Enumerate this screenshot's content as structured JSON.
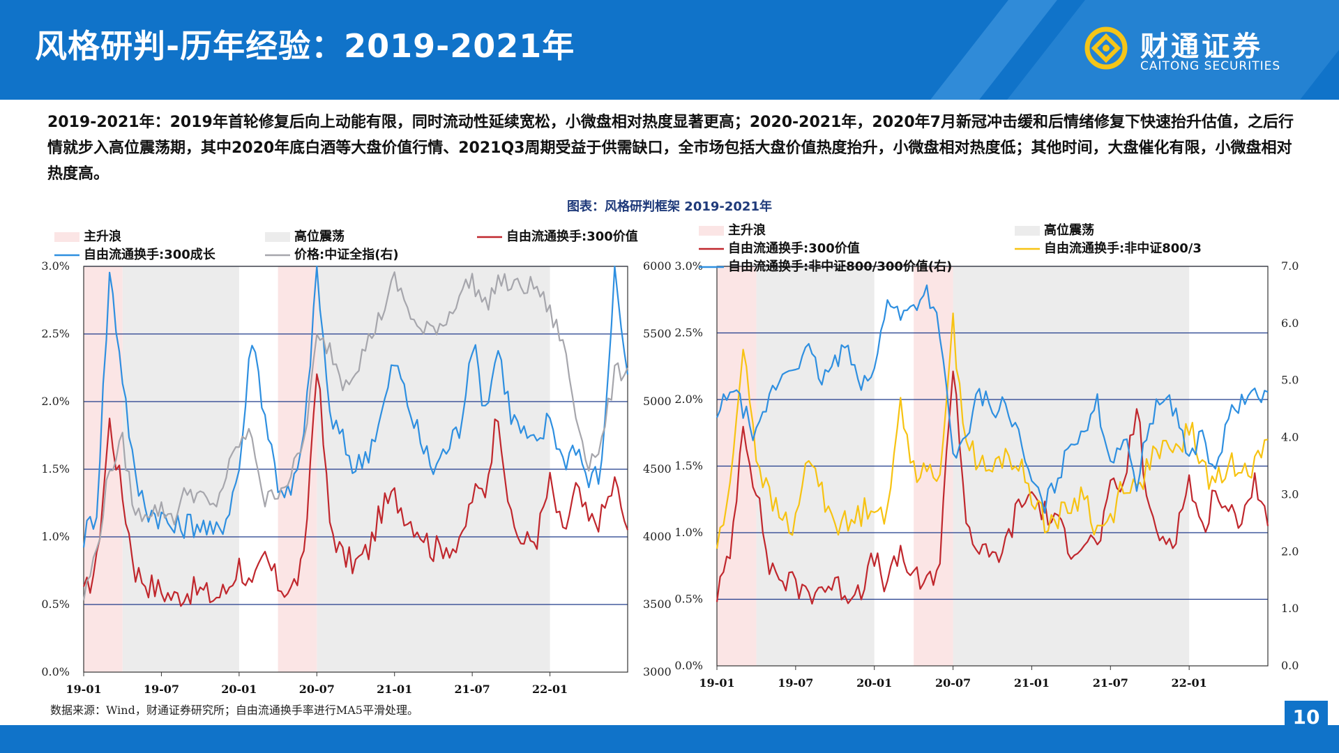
{
  "header": {
    "title": "风格研判-历年经验：2019-2021年",
    "brand_cn": "财通证券",
    "brand_en": "CAITONG SECURITIES"
  },
  "summary": "2019-2021年：2019年首轮修复后向上动能有限，同时流动性延续宽松，小微盘相对热度显著更高；2020-2021年，2020年7月新冠冲击缓和后情绪修复下快速抬升估值，之后行情就步入高位震荡期，其中2020年底白酒等大盘价值行情、2021Q3周期受益于供需缺口，全市场包括大盘价值热度抬升，小微盘相对热度低；其他时间，大盘催化有限，小微盘相对热度高。",
  "figure_title": "图表：风格研判框架 2019-2021年",
  "source": "数据来源：Wind，财通证券研究所；自由流通换手率进行MA5平滑处理。",
  "page_number": "10",
  "colors": {
    "brand_blue": "#1073c9",
    "surge_fill": "#fbe5e5",
    "osc_fill": "#ececec",
    "red": "#c0272d",
    "blue": "#2e8fe0",
    "gray": "#a6a6ac",
    "yellow": "#f7c312",
    "grid": "#1f3a8a"
  },
  "chart_data": [
    {
      "type": "line",
      "x_tick_labels": [
        "19-01",
        "19-07",
        "20-01",
        "20-07",
        "21-01",
        "21-07",
        "22-01"
      ],
      "x_range": [
        "2019-01",
        "2022-07"
      ],
      "y_left": {
        "ticks": [
          "0.0%",
          "0.5%",
          "1.0%",
          "1.5%",
          "2.0%",
          "2.5%",
          "3.0%"
        ],
        "range": [
          0,
          3.0
        ]
      },
      "y_right": {
        "ticks": [
          "3000",
          "3500",
          "4000",
          "4500",
          "5000",
          "5500",
          "6000"
        ],
        "range": [
          3000,
          6000
        ]
      },
      "legend": {
        "surge": "主升浪",
        "oscillation": "高位震荡",
        "red": "自由流通换手:300价值",
        "blue": "自由流通换手:300成长",
        "gray": "价格:中证全指(右)"
      },
      "surge_periods": [
        [
          "2019-01",
          "2019-04"
        ],
        [
          "2020-04",
          "2020-07"
        ]
      ],
      "oscillation_periods": [
        [
          "2019-04",
          "2020-01"
        ],
        [
          "2020-07",
          "2022-01"
        ]
      ],
      "series": [
        {
          "name": "自由流通换手:300价值",
          "axis": "left",
          "x": [
            "2019-01",
            "2019-02",
            "2019-03",
            "2019-04",
            "2019-05",
            "2019-06",
            "2019-07",
            "2019-08",
            "2019-09",
            "2019-10",
            "2019-11",
            "2019-12",
            "2020-01",
            "2020-02",
            "2020-03",
            "2020-04",
            "2020-05",
            "2020-06",
            "2020-07",
            "2020-08",
            "2020-09",
            "2020-10",
            "2020-11",
            "2020-12",
            "2021-01",
            "2021-02",
            "2021-03",
            "2021-04",
            "2021-05",
            "2021-06",
            "2021-07",
            "2021-08",
            "2021-09",
            "2021-10",
            "2021-11",
            "2021-12",
            "2022-01",
            "2022-02",
            "2022-03",
            "2022-04",
            "2022-05",
            "2022-06",
            "2022-07"
          ],
          "values": [
            0.55,
            0.8,
            1.85,
            1.3,
            0.75,
            0.65,
            0.6,
            0.55,
            0.6,
            0.6,
            0.55,
            0.6,
            0.8,
            0.6,
            0.85,
            0.65,
            0.6,
            0.8,
            2.3,
            1.1,
            0.85,
            0.8,
            0.9,
            1.2,
            1.3,
            1.15,
            1.05,
            0.9,
            0.95,
            0.9,
            1.3,
            1.35,
            1.95,
            1.1,
            0.95,
            1.0,
            1.4,
            1.0,
            1.35,
            1.1,
            1.15,
            1.4,
            1.05
          ]
        },
        {
          "name": "自由流通换手:300成长",
          "axis": "left",
          "x": [
            "2019-01",
            "2019-02",
            "2019-03",
            "2019-04",
            "2019-05",
            "2019-06",
            "2019-07",
            "2019-08",
            "2019-09",
            "2019-10",
            "2019-11",
            "2019-12",
            "2020-01",
            "2020-02",
            "2020-03",
            "2020-04",
            "2020-05",
            "2020-06",
            "2020-07",
            "2020-08",
            "2020-09",
            "2020-10",
            "2020-11",
            "2020-12",
            "2021-01",
            "2021-02",
            "2021-03",
            "2021-04",
            "2021-05",
            "2021-06",
            "2021-07",
            "2021-08",
            "2021-09",
            "2021-10",
            "2021-11",
            "2021-12",
            "2022-01",
            "2022-02",
            "2022-03",
            "2022-04",
            "2022-05",
            "2022-06",
            "2022-07"
          ],
          "values": [
            1.0,
            1.2,
            2.95,
            2.2,
            1.4,
            1.2,
            1.15,
            1.05,
            1.1,
            1.1,
            1.0,
            1.15,
            1.5,
            2.5,
            1.9,
            1.4,
            1.3,
            1.7,
            3.0,
            1.9,
            1.7,
            1.5,
            1.65,
            1.9,
            2.3,
            2.0,
            1.7,
            1.5,
            1.65,
            1.8,
            2.45,
            1.95,
            2.4,
            1.9,
            1.75,
            1.65,
            1.9,
            1.55,
            1.7,
            1.4,
            1.5,
            3.0,
            2.2
          ]
        },
        {
          "name": "价格:中证全指(右)",
          "axis": "right",
          "x": [
            "2019-01",
            "2019-02",
            "2019-03",
            "2019-04",
            "2019-05",
            "2019-06",
            "2019-07",
            "2019-08",
            "2019-09",
            "2019-10",
            "2019-11",
            "2019-12",
            "2020-01",
            "2020-02",
            "2020-03",
            "2020-04",
            "2020-05",
            "2020-06",
            "2020-07",
            "2020-08",
            "2020-09",
            "2020-10",
            "2020-11",
            "2020-12",
            "2021-01",
            "2021-02",
            "2021-03",
            "2021-04",
            "2021-05",
            "2021-06",
            "2021-07",
            "2021-08",
            "2021-09",
            "2021-10",
            "2021-11",
            "2021-12",
            "2022-01",
            "2022-02",
            "2022-03",
            "2022-04",
            "2022-05",
            "2022-06",
            "2022-07"
          ],
          "values": [
            3550,
            3900,
            4500,
            4700,
            4150,
            4200,
            4200,
            4150,
            4350,
            4300,
            4200,
            4450,
            4700,
            4750,
            4250,
            4350,
            4450,
            4700,
            5450,
            5400,
            5150,
            5250,
            5450,
            5650,
            5900,
            5700,
            5500,
            5550,
            5600,
            5800,
            5900,
            5700,
            5900,
            5850,
            5850,
            5850,
            5650,
            5450,
            4900,
            4550,
            4700,
            5200,
            5250
          ]
        }
      ]
    },
    {
      "type": "line",
      "x_tick_labels": [
        "19-01",
        "19-07",
        "20-01",
        "20-07",
        "21-01",
        "21-07",
        "22-01"
      ],
      "x_range": [
        "2019-01",
        "2022-07"
      ],
      "y_left": {
        "ticks": [
          "0.0%",
          "0.5%",
          "1.0%",
          "1.5%",
          "2.0%",
          "2.5%",
          "3.0%"
        ],
        "range": [
          0,
          3.0
        ]
      },
      "y_right": {
        "ticks": [
          "0.0",
          "1.0",
          "2.0",
          "3.0",
          "4.0",
          "5.0",
          "6.0",
          "7.0"
        ],
        "range": [
          0,
          7.0
        ]
      },
      "legend": {
        "surge": "主升浪",
        "oscillation": "高位震荡",
        "red": "自由流通换手:300价值",
        "yellow": "自由流通换手:非中证800/3",
        "blue": "自由流通换手:非中证800/300价值(右)"
      },
      "surge_periods": [
        [
          "2019-01",
          "2019-04"
        ],
        [
          "2020-04",
          "2020-07"
        ]
      ],
      "oscillation_periods": [
        [
          "2019-04",
          "2020-01"
        ],
        [
          "2020-07",
          "2022-01"
        ]
      ],
      "series": [
        {
          "name": "自由流通换手:300价值",
          "axis": "left",
          "x": [
            "2019-01",
            "2019-02",
            "2019-03",
            "2019-04",
            "2019-05",
            "2019-06",
            "2019-07",
            "2019-08",
            "2019-09",
            "2019-10",
            "2019-11",
            "2019-12",
            "2020-01",
            "2020-02",
            "2020-03",
            "2020-04",
            "2020-05",
            "2020-06",
            "2020-07",
            "2020-08",
            "2020-09",
            "2020-10",
            "2020-11",
            "2020-12",
            "2021-01",
            "2021-02",
            "2021-03",
            "2021-04",
            "2021-05",
            "2021-06",
            "2021-07",
            "2021-08",
            "2021-09",
            "2021-10",
            "2021-11",
            "2021-12",
            "2022-01",
            "2022-02",
            "2022-03",
            "2022-04",
            "2022-05",
            "2022-06",
            "2022-07"
          ],
          "values": [
            0.55,
            0.8,
            1.85,
            1.3,
            0.75,
            0.65,
            0.6,
            0.55,
            0.6,
            0.6,
            0.55,
            0.6,
            0.8,
            0.6,
            0.85,
            0.65,
            0.6,
            0.8,
            2.3,
            1.1,
            0.85,
            0.8,
            0.9,
            1.2,
            1.3,
            1.15,
            1.05,
            0.9,
            0.95,
            0.9,
            1.3,
            1.35,
            1.95,
            1.1,
            0.95,
            1.0,
            1.4,
            1.0,
            1.35,
            1.1,
            1.15,
            1.4,
            1.05
          ]
        },
        {
          "name": "自由流通换手:非中证800/3",
          "axis": "left",
          "x": [
            "2019-01",
            "2019-02",
            "2019-03",
            "2019-04",
            "2019-05",
            "2019-06",
            "2019-07",
            "2019-08",
            "2019-09",
            "2019-10",
            "2019-11",
            "2019-12",
            "2020-01",
            "2020-02",
            "2020-03",
            "2020-04",
            "2020-05",
            "2020-06",
            "2020-07",
            "2020-08",
            "2020-09",
            "2020-10",
            "2020-11",
            "2020-12",
            "2021-01",
            "2021-02",
            "2021-03",
            "2021-04",
            "2021-05",
            "2021-06",
            "2021-07",
            "2021-08",
            "2021-09",
            "2021-10",
            "2021-11",
            "2021-12",
            "2022-01",
            "2022-02",
            "2022-03",
            "2022-04",
            "2022-05",
            "2022-06",
            "2022-07"
          ],
          "values": [
            0.9,
            1.3,
            2.45,
            1.6,
            1.25,
            1.1,
            1.05,
            1.6,
            1.3,
            1.1,
            1.05,
            1.15,
            1.25,
            1.1,
            2.0,
            1.5,
            1.4,
            1.5,
            2.55,
            1.7,
            1.5,
            1.45,
            1.6,
            1.5,
            1.3,
            1.1,
            1.1,
            1.2,
            1.3,
            1.0,
            1.1,
            1.4,
            1.3,
            1.55,
            1.6,
            1.6,
            1.8,
            1.5,
            1.35,
            1.5,
            1.55,
            1.5,
            1.7
          ]
        },
        {
          "name": "自由流通换手:非中证800/300价值(右)",
          "axis": "right",
          "x": [
            "2019-01",
            "2019-02",
            "2019-03",
            "2019-04",
            "2019-05",
            "2019-06",
            "2019-07",
            "2019-08",
            "2019-09",
            "2019-10",
            "2019-11",
            "2019-12",
            "2020-01",
            "2020-02",
            "2020-03",
            "2020-04",
            "2020-05",
            "2020-06",
            "2020-07",
            "2020-08",
            "2020-09",
            "2020-10",
            "2020-11",
            "2020-12",
            "2021-01",
            "2021-02",
            "2021-03",
            "2021-04",
            "2021-05",
            "2021-06",
            "2021-07",
            "2021-08",
            "2021-09",
            "2021-10",
            "2021-11",
            "2021-12",
            "2022-01",
            "2022-02",
            "2022-03",
            "2022-04",
            "2022-05",
            "2022-06",
            "2022-07"
          ],
          "values": [
            4.3,
            4.9,
            4.5,
            4.0,
            4.7,
            5.1,
            5.3,
            5.5,
            5.0,
            5.3,
            5.6,
            5.0,
            5.1,
            6.5,
            6.1,
            6.3,
            6.6,
            5.9,
            3.6,
            4.0,
            4.8,
            4.5,
            4.6,
            4.0,
            3.2,
            2.8,
            3.3,
            3.9,
            4.2,
            4.6,
            3.6,
            4.0,
            3.2,
            4.3,
            4.7,
            4.5,
            3.6,
            4.1,
            3.3,
            4.4,
            4.6,
            4.7,
            4.8
          ]
        }
      ]
    }
  ]
}
